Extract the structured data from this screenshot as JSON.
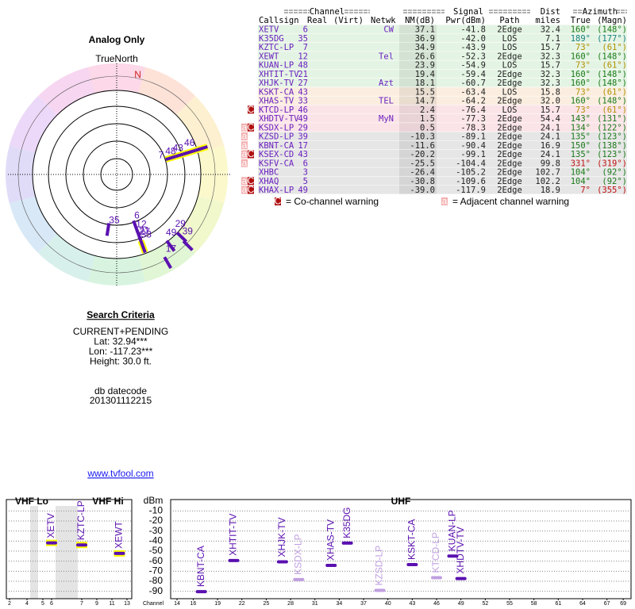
{
  "radar": {
    "title": "Analog Only",
    "north_label": "TrueNorth",
    "n": "N",
    "color": "#5a10b0",
    "stations": [
      {
        "label": "6",
        "azimuth": 160,
        "nm": 37.1
      },
      {
        "label": "35",
        "azimuth": 189,
        "nm": 36.9
      },
      {
        "label": "7",
        "azimuth": 73,
        "nm": 34.9,
        "halo": "#ffff00"
      },
      {
        "label": "12",
        "azimuth": 160,
        "nm": 26.6
      },
      {
        "label": "48",
        "azimuth": 73,
        "nm": 23.9,
        "halo": "#ffff00"
      },
      {
        "label": "21",
        "azimuth": 160,
        "nm": 19.4
      },
      {
        "label": "27",
        "azimuth": 160,
        "nm": 18.1
      },
      {
        "label": "43",
        "azimuth": 73,
        "nm": 15.5,
        "halo": "#ffff00"
      },
      {
        "label": "33",
        "azimuth": 160,
        "nm": 14.7,
        "halo": "#ffff00"
      },
      {
        "label": "46",
        "azimuth": 73,
        "nm": 2.4,
        "halo": "#ffff00"
      },
      {
        "label": "49",
        "azimuth": 143,
        "nm": 1.5
      },
      {
        "label": "29",
        "azimuth": 134,
        "nm": 0.5
      },
      {
        "label": "39",
        "azimuth": 135,
        "nm": -10.3
      },
      {
        "label": "17",
        "azimuth": 150,
        "nm": -11.6
      }
    ]
  },
  "search": {
    "title": "Search Criteria",
    "lines": [
      "CURRENT+PENDING",
      "Lat: 32.94***",
      "Lon: -117.23***",
      "Height: 30.0 ft."
    ],
    "datecode_label": "db datecode",
    "datecode": "201301112215",
    "link": "www.tvfool.com"
  },
  "table": {
    "groups": [
      "Channel",
      "Signal",
      "Dist",
      "Azimuth"
    ],
    "headers": [
      "Callsign",
      "Real",
      "(Virt)",
      "Netwk",
      "NM(dB)",
      "Pwr(dBm)",
      "Path",
      "miles",
      "True",
      "(Magn)"
    ],
    "rows": [
      {
        "callsign": "XETV",
        "real": "6",
        "netwk": "CW",
        "nm": "37.1",
        "pwr": "-41.8",
        "path": "2Edge",
        "dist": "32.4",
        "true": "160°",
        "magn": "(148°)",
        "bg": "#e4f4e4",
        "az_color": "#1a7a1a"
      },
      {
        "callsign": "K35DG",
        "real": "35",
        "nm": "36.9",
        "pwr": "-42.0",
        "path": "LOS",
        "dist": "7.1",
        "true": "189°",
        "magn": "(177°)",
        "bg": "#e4f4e4",
        "az_color": "#1a8080"
      },
      {
        "callsign": "KZTC-LP",
        "real": "7",
        "nm": "34.9",
        "pwr": "-43.9",
        "path": "LOS",
        "dist": "15.7",
        "true": "73°",
        "magn": "(61°)",
        "bg": "#e4f4e4",
        "az_color": "#b09000"
      },
      {
        "callsign": "XEWT",
        "real": "12",
        "netwk": "Tel",
        "nm": "26.6",
        "pwr": "-52.3",
        "path": "2Edge",
        "dist": "32.3",
        "true": "160°",
        "magn": "(148°)",
        "bg": "#e4f4e4",
        "az_color": "#1a7a1a"
      },
      {
        "callsign": "KUAN-LP",
        "real": "48",
        "nm": "23.9",
        "pwr": "-54.9",
        "path": "LOS",
        "dist": "15.7",
        "true": "73°",
        "magn": "(61°)",
        "bg": "#e4f4e4",
        "az_color": "#b09000"
      },
      {
        "callsign": "XHTIT-TV",
        "real": "21",
        "nm": "19.4",
        "pwr": "-59.4",
        "path": "2Edge",
        "dist": "32.3",
        "true": "160°",
        "magn": "(148°)",
        "bg": "#e4f4e4",
        "az_color": "#1a7a1a"
      },
      {
        "callsign": "XHJK-TV",
        "real": "27",
        "netwk": "Azt",
        "nm": "18.1",
        "pwr": "-60.7",
        "path": "2Edge",
        "dist": "32.3",
        "true": "160°",
        "magn": "(148°)",
        "bg": "#e4f4e4",
        "az_color": "#1a7a1a"
      },
      {
        "callsign": "KSKT-CA",
        "real": "43",
        "nm": "15.5",
        "pwr": "-63.4",
        "path": "LOS",
        "dist": "15.8",
        "true": "73°",
        "magn": "(61°)",
        "bg": "#fbeee0",
        "az_color": "#b09000"
      },
      {
        "callsign": "XHAS-TV",
        "real": "33",
        "netwk": "TEL",
        "nm": "14.7",
        "pwr": "-64.2",
        "path": "2Edge",
        "dist": "32.0",
        "true": "160°",
        "magn": "(148°)",
        "bg": "#fbeee0",
        "az_color": "#1a7a1a"
      },
      {
        "callsign": "KTCD-LP",
        "real": "46",
        "nm": "2.4",
        "pwr": "-76.4",
        "path": "LOS",
        "dist": "15.7",
        "true": "73°",
        "magn": "(61°)",
        "warn": [
          "C"
        ],
        "bg": "#fbe4e8",
        "az_color": "#b09000"
      },
      {
        "callsign": "XHDTV-TV",
        "real": "49",
        "netwk": "MyN",
        "nm": "1.5",
        "pwr": "-77.3",
        "path": "2Edge",
        "dist": "54.4",
        "true": "143°",
        "magn": "(131°)",
        "bg": "#fbe4e8",
        "az_color": "#1a7a1a"
      },
      {
        "callsign": "KSDX-LP",
        "real": "29",
        "nm": "0.5",
        "pwr": "-78.3",
        "path": "2Edge",
        "dist": "24.1",
        "true": "134°",
        "magn": "(122°)",
        "warn": [
          "a",
          "C"
        ],
        "bg": "#fbe4e8",
        "az_color": "#1a7a1a"
      },
      {
        "callsign": "KZSD-LP",
        "real": "39",
        "nm": "-10.3",
        "pwr": "-89.1",
        "path": "2Edge",
        "dist": "24.1",
        "true": "135°",
        "magn": "(123°)",
        "warn": [
          "a"
        ],
        "bg": "#e6e6e6",
        "az_color": "#1a7a1a"
      },
      {
        "callsign": "KBNT-CA",
        "real": "17",
        "nm": "-11.6",
        "pwr": "-90.4",
        "path": "2Edge",
        "dist": "16.9",
        "true": "150°",
        "magn": "(138°)",
        "warn": [
          "a"
        ],
        "bg": "#e6e6e6",
        "az_color": "#1a7a1a"
      },
      {
        "callsign": "KSEX-CD",
        "real": "43",
        "nm": "-20.2",
        "pwr": "-99.1",
        "path": "2Edge",
        "dist": "24.1",
        "true": "135°",
        "magn": "(123°)",
        "warn": [
          "a",
          "C"
        ],
        "bg": "#e6e6e6",
        "az_color": "#1a7a1a"
      },
      {
        "callsign": "KSFV-CA",
        "real": "6",
        "nm": "-25.5",
        "pwr": "-104.4",
        "path": "2Edge",
        "dist": "99.8",
        "true": "331°",
        "magn": "(319°)",
        "warn": [
          "a"
        ],
        "bg": "#e6e6e6",
        "az_color": "#c01010"
      },
      {
        "callsign": "XHBC",
        "real": "3",
        "nm": "-26.4",
        "pwr": "-105.2",
        "path": "2Edge",
        "dist": "102.7",
        "true": "104°",
        "magn": "(92°)",
        "bg": "#e6e6e6",
        "az_color": "#1a7a1a"
      },
      {
        "callsign": "XHAQ",
        "real": "5",
        "nm": "-30.8",
        "pwr": "-109.6",
        "path": "2Edge",
        "dist": "102.2",
        "true": "104°",
        "magn": "(92°)",
        "warn": [
          "a",
          "C"
        ],
        "bg": "#e6e6e6",
        "az_color": "#1a7a1a"
      },
      {
        "callsign": "KHAX-LP",
        "real": "49",
        "nm": "-39.0",
        "pwr": "-117.9",
        "path": "2Edge",
        "dist": "18.9",
        "true": "7°",
        "magn": "(355°)",
        "warn": [
          "a",
          "C"
        ],
        "bg": "#e6e6e6",
        "az_color": "#c01010"
      }
    ],
    "legend": [
      {
        "mark": "C",
        "text": "= Co-channel warning"
      },
      {
        "mark": "a",
        "text": "= Adjacent channel warning"
      }
    ]
  },
  "spectrum": {
    "bands": [
      "VHF Lo",
      "VHF Hi",
      "UHF"
    ],
    "y_label": "dBm",
    "x_label": "Channel",
    "ylim": [
      -5,
      -95
    ],
    "yticks": [
      -10,
      -20,
      -30,
      -40,
      -50,
      -60,
      -70,
      -80,
      -90
    ],
    "vhf_ticks": [
      2,
      4,
      5,
      6,
      7,
      9,
      11,
      13
    ],
    "uhf_ticks": [
      14,
      16,
      19,
      22,
      25,
      28,
      31,
      34,
      37,
      40,
      43,
      46,
      49,
      52,
      55,
      58,
      61,
      64,
      67,
      69
    ],
    "stations": [
      {
        "name": "XETV",
        "channel": 6,
        "dbm": -41.8,
        "color": "#5a10b0",
        "halo": "#ffff00"
      },
      {
        "name": "KZTC-LP",
        "channel": 7,
        "dbm": -43.9,
        "color": "#5a10b0",
        "halo": "#ffff00"
      },
      {
        "name": "XEWT",
        "channel": 12,
        "dbm": -52.3,
        "color": "#5a10b0",
        "halo": "#ffff00"
      },
      {
        "name": "KBNT-CA",
        "channel": 17,
        "dbm": -90.4,
        "color": "#5a10b0"
      },
      {
        "name": "XHTIT-TV",
        "channel": 21,
        "dbm": -59.4,
        "color": "#5a10b0"
      },
      {
        "name": "XHJK-TV",
        "channel": 27,
        "dbm": -60.7,
        "color": "#5a10b0"
      },
      {
        "name": "KSDX-LP",
        "channel": 29,
        "dbm": -78.3,
        "color": "#c0a0e0"
      },
      {
        "name": "XHAS-TV",
        "channel": 33,
        "dbm": -64.2,
        "color": "#5a10b0"
      },
      {
        "name": "K35DG",
        "channel": 35,
        "dbm": -42.0,
        "color": "#5a10b0"
      },
      {
        "name": "KZSD-LP",
        "channel": 39,
        "dbm": -89.1,
        "color": "#c0a0e0"
      },
      {
        "name": "KSKT-CA",
        "channel": 43,
        "dbm": -63.4,
        "color": "#5a10b0"
      },
      {
        "name": "KTCD-LP",
        "channel": 46,
        "dbm": -76.4,
        "color": "#c0a0e0"
      },
      {
        "name": "KUAN-LP",
        "channel": 48,
        "dbm": -54.9,
        "color": "#5a10b0"
      },
      {
        "name": "XHDTV-TV",
        "channel": 49,
        "dbm": -77.3,
        "color": "#5a10b0"
      }
    ]
  }
}
